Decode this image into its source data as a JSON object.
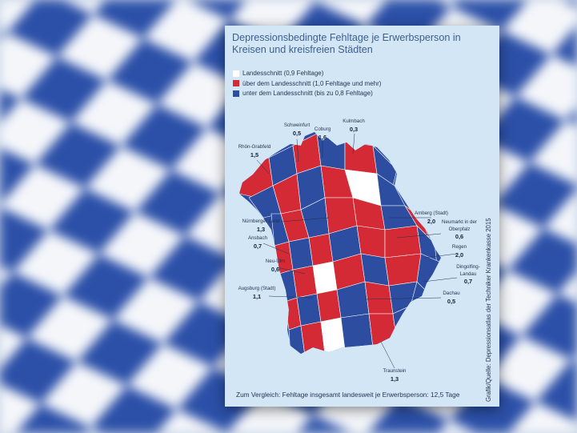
{
  "title": "Depressionsbedingte Fehltage je Erwerbsperson in Kreisen und kreisfreien Städten",
  "legend": [
    {
      "label": "Landesschnitt (0,9 Fehltage)",
      "color": "#ffffff"
    },
    {
      "label": "über dem Landesschnitt (1,0 Fehltage und mehr)",
      "color": "#d42a35"
    },
    {
      "label": "unter dem Landesschnitt (bis zu 0,8 Fehltage)",
      "color": "#2c4da0"
    }
  ],
  "colors": {
    "average": "#ffffff",
    "above": "#d42a35",
    "below": "#2c4da0",
    "card_background": "#d3e6f5",
    "title_text": "#3d5f8f",
    "background_blue": "#2c50a8"
  },
  "regions": [
    {
      "name": "Schweinfurt",
      "value": "0,5"
    },
    {
      "name": "Coburg",
      "value": "1,6"
    },
    {
      "name": "Kulmbach",
      "value": "0,3"
    },
    {
      "name": "Rhön-Grabfeld",
      "value": "1,5"
    },
    {
      "name": "Nürnberger Land",
      "value": "1,3"
    },
    {
      "name": "Ansbach",
      "value": "0,7"
    },
    {
      "name": "Neu-Ulm",
      "value": "0,6"
    },
    {
      "name": "Augsburg (Stadt)",
      "value": "1,1"
    },
    {
      "name": "Amberg (Stadt)",
      "value": "2,0"
    },
    {
      "name": "Neumarkt in der Oberpfalz",
      "value": "0,6"
    },
    {
      "name": "Regen",
      "value": "2,0"
    },
    {
      "name": "Dingolfing-Landau",
      "value": "0,7"
    },
    {
      "name": "Dachau",
      "value": "0,5"
    },
    {
      "name": "Traunstein",
      "value": "1,3"
    }
  ],
  "footer": "Zum Vergleich: Fehltage insgesamt landesweit je Erwerbsperson: 12,5 Tage",
  "credit": "Grafik/Quelle: Depressionsatlas der Techniker Krankenkasse 2015"
}
